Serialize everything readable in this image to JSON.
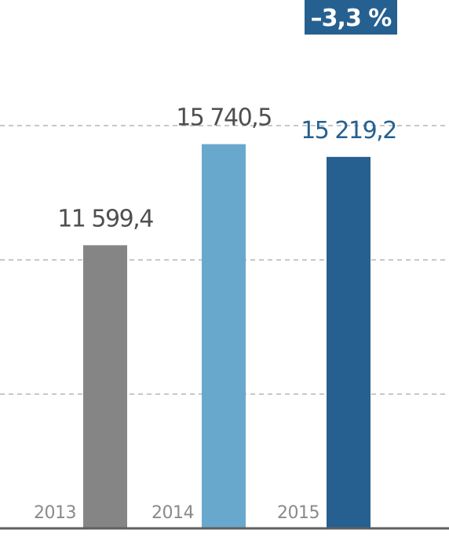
{
  "chart_data": {
    "type": "bar",
    "categories": [
      "2013",
      "2014",
      "2015"
    ],
    "values": [
      11599.4,
      15740.5,
      15219.2
    ],
    "value_labels": [
      "11 599,4",
      "15 740,5",
      "15 219,2"
    ],
    "bar_colors": [
      "#858585",
      "#69a8cd",
      "#266090"
    ],
    "label_colors": [
      "#4f4f4f",
      "#4f4f4f",
      "#266090"
    ],
    "ylim": [
      0,
      16500
    ],
    "gridlines": [
      5500,
      11000,
      16500
    ],
    "grid": true,
    "change_badge": {
      "text": "–3,3 %",
      "color": "#266090"
    },
    "axis_color": "#5f5f5f",
    "grid_color": "#a8a8a8"
  }
}
